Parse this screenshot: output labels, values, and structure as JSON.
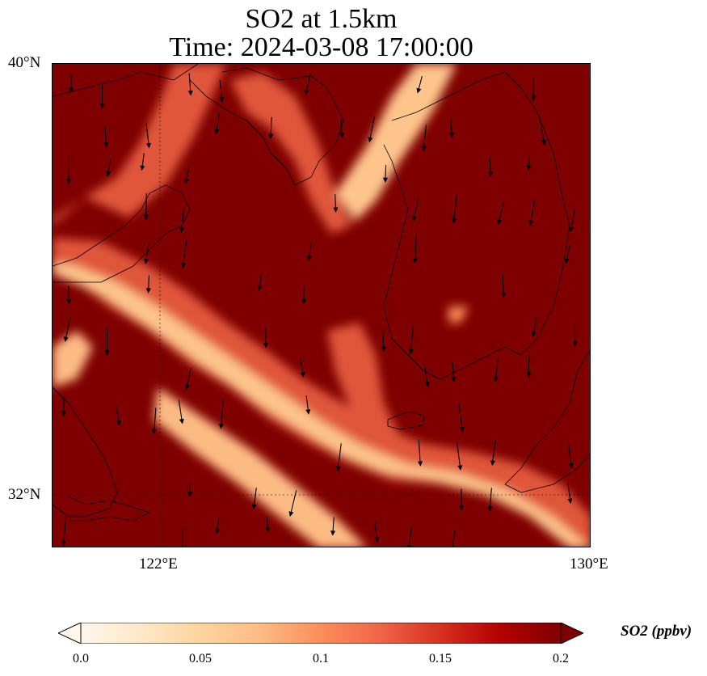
{
  "title": {
    "line1": "SO2 at 1.5km",
    "line2": "Time: 2024-03-08 17:00:00"
  },
  "axes": {
    "y_ticks": [
      {
        "label": "40°N",
        "lat": 40
      },
      {
        "label": "32°N",
        "lat": 32
      }
    ],
    "x_ticks": [
      {
        "label": "122°E",
        "lon": 122
      },
      {
        "label": "130°E",
        "lon": 130
      }
    ],
    "extent": {
      "lon": [
        120,
        130
      ],
      "lat": [
        31,
        40
      ]
    }
  },
  "colorbar": {
    "label": "SO2 (ppbv)",
    "ticks": [
      "0.0",
      "0.05",
      "0.1",
      "0.15",
      "0.2"
    ],
    "range": [
      0,
      0.2
    ],
    "colors": [
      "#fff7ec",
      "#fee8c8",
      "#fdd49e",
      "#fdbb84",
      "#fc8d59",
      "#ef6548",
      "#d7301f",
      "#b30000",
      "#7f0000"
    ]
  },
  "map": {
    "background_color": "#7f0000",
    "plume_colors": {
      "high": "#7f0000",
      "mid": "#e0563a",
      "low": "#fdc48c"
    },
    "wind_direction": "south-southeast"
  }
}
